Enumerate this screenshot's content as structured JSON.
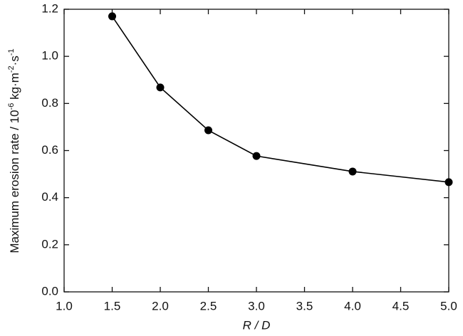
{
  "chart_data": {
    "type": "line",
    "x_label": "R / D",
    "y_label": [
      "Maximum erosion rate / 10",
      "-6",
      " kg·m",
      "-2",
      "·s",
      "-1"
    ],
    "x": [
      1.5,
      2.0,
      2.5,
      3.0,
      4.0,
      5.0
    ],
    "series": [
      {
        "color": "#000000",
        "values": [
          1.17,
          0.868,
          0.686,
          0.577,
          0.511,
          0.466
        ]
      }
    ],
    "xlim": [
      1.0,
      5.0
    ],
    "xticks": [
      {
        "value": 1,
        "label": "1.0"
      },
      1.5,
      {
        "value": 2,
        "label": "2.0"
      },
      2.5,
      {
        "value": 3,
        "label": "3.0"
      },
      3.5,
      {
        "value": 4,
        "label": "4.0"
      },
      4.5,
      {
        "value": 5,
        "label": "5.0"
      }
    ],
    "ylim": [
      0.0,
      1.2
    ],
    "yticks": [
      {
        "value": 0,
        "label": "0.0"
      },
      0.2,
      0.4,
      0.6,
      0.8,
      {
        "value": 1,
        "label": "1.0"
      },
      1.2
    ],
    "grid": false
  }
}
